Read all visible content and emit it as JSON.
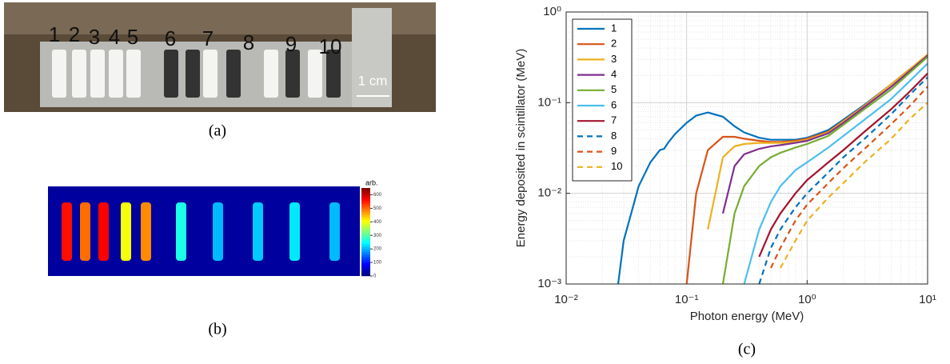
{
  "photo": {
    "labels": [
      "1",
      "2",
      "3",
      "4",
      "5",
      "6",
      "7",
      "8",
      "9",
      "10"
    ],
    "scale_label": "1 cm",
    "caption": "(a)"
  },
  "heatmap": {
    "colorbar_label": "arb.",
    "clim": [
      0,
      650
    ],
    "colorbar_ticks": [
      0,
      100,
      200,
      300,
      400,
      500,
      600
    ],
    "strip_values": [
      560,
      500,
      570,
      400,
      480,
      260,
      200,
      210,
      230,
      200
    ],
    "caption": "(b)"
  },
  "chart_data": {
    "type": "line",
    "caption": "(c)",
    "x_label": "Photon energy (MeV)",
    "y_label": "Energy deposited in scintillator (MeV)",
    "log_x": true,
    "log_y": true,
    "grid": true,
    "minor_grid": true,
    "legend": "top-left",
    "xlim": [
      0.01,
      10
    ],
    "ylim": [
      0.001,
      1
    ],
    "xticks": [
      {
        "value": 0.01,
        "label": "10⁻²"
      },
      {
        "value": 0.1,
        "label": "10⁻¹"
      },
      {
        "value": 1,
        "label": "10⁰"
      },
      {
        "value": 10,
        "label": "10¹"
      }
    ],
    "yticks": [
      {
        "value": 0.001,
        "label": "10⁻³"
      },
      {
        "value": 0.01,
        "label": "10⁻²"
      },
      {
        "value": 0.1,
        "label": "10⁻¹"
      },
      {
        "value": 1,
        "label": "10⁰"
      }
    ],
    "x": [
      0.027,
      0.03,
      0.04,
      0.05,
      0.06,
      0.065,
      0.07,
      0.08,
      0.1,
      0.12,
      0.15,
      0.2,
      0.25,
      0.3,
      0.4,
      0.5,
      0.6,
      0.8,
      1,
      1.5,
      2,
      3,
      5,
      7,
      10
    ],
    "series": [
      {
        "name": "1",
        "color": "#0072bd",
        "dashed": false,
        "values": [
          0.001,
          0.003,
          0.012,
          0.022,
          0.03,
          0.031,
          0.036,
          0.045,
          0.06,
          0.072,
          0.078,
          0.07,
          0.055,
          0.047,
          0.041,
          0.039,
          0.039,
          0.039,
          0.041,
          0.05,
          0.065,
          0.095,
          0.16,
          0.23,
          0.32
        ]
      },
      {
        "name": "2",
        "color": "#d95319",
        "dashed": false,
        "values": [
          null,
          null,
          null,
          null,
          null,
          null,
          null,
          null,
          0.001,
          0.01,
          0.03,
          0.042,
          0.042,
          0.04,
          0.038,
          0.037,
          0.037,
          0.038,
          0.04,
          0.048,
          0.063,
          0.093,
          0.16,
          0.23,
          0.33
        ]
      },
      {
        "name": "3",
        "color": "#edb120",
        "dashed": false,
        "values": [
          null,
          null,
          null,
          null,
          null,
          null,
          null,
          null,
          null,
          null,
          0.004,
          0.025,
          0.033,
          0.035,
          0.036,
          0.036,
          0.036,
          0.037,
          0.039,
          0.047,
          0.062,
          0.092,
          0.16,
          0.23,
          0.34
        ]
      },
      {
        "name": "4",
        "color": "#7e2f8e",
        "dashed": false,
        "values": [
          null,
          null,
          null,
          null,
          null,
          null,
          null,
          null,
          null,
          null,
          null,
          0.006,
          0.02,
          0.027,
          0.031,
          0.033,
          0.034,
          0.036,
          0.038,
          0.046,
          0.06,
          0.09,
          0.15,
          0.22,
          0.33
        ]
      },
      {
        "name": "5",
        "color": "#77ac30",
        "dashed": false,
        "values": [
          null,
          null,
          null,
          null,
          null,
          null,
          null,
          null,
          null,
          null,
          null,
          0.001,
          0.006,
          0.012,
          0.02,
          0.025,
          0.028,
          0.032,
          0.035,
          0.043,
          0.057,
          0.085,
          0.14,
          0.21,
          0.32
        ]
      },
      {
        "name": "6",
        "color": "#4dbeee",
        "dashed": false,
        "values": [
          null,
          null,
          null,
          null,
          null,
          null,
          null,
          null,
          null,
          null,
          null,
          null,
          null,
          0.001,
          0.004,
          0.008,
          0.012,
          0.018,
          0.022,
          0.032,
          0.043,
          0.065,
          0.11,
          0.17,
          0.27
        ]
      },
      {
        "name": "7",
        "color": "#a2142f",
        "dashed": false,
        "values": [
          null,
          null,
          null,
          null,
          null,
          null,
          null,
          null,
          null,
          null,
          null,
          null,
          null,
          null,
          0.002,
          0.004,
          0.006,
          0.01,
          0.014,
          0.022,
          0.03,
          0.048,
          0.085,
          0.13,
          0.21
        ]
      },
      {
        "name": "8",
        "color": "#0072bd",
        "dashed": true,
        "values": [
          null,
          null,
          null,
          null,
          null,
          null,
          null,
          null,
          null,
          null,
          null,
          null,
          null,
          null,
          0.001,
          0.0025,
          0.004,
          0.007,
          0.01,
          0.017,
          0.025,
          0.04,
          0.075,
          0.12,
          0.19
        ]
      },
      {
        "name": "9",
        "color": "#d95319",
        "dashed": true,
        "values": [
          null,
          null,
          null,
          null,
          null,
          null,
          null,
          null,
          null,
          null,
          null,
          null,
          null,
          null,
          null,
          0.0015,
          0.0025,
          0.005,
          0.0075,
          0.013,
          0.019,
          0.031,
          0.058,
          0.09,
          0.15
        ]
      },
      {
        "name": "10",
        "color": "#edb120",
        "dashed": true,
        "values": [
          null,
          null,
          null,
          null,
          null,
          null,
          null,
          null,
          null,
          null,
          null,
          null,
          null,
          null,
          null,
          null,
          0.0015,
          0.003,
          0.005,
          0.009,
          0.013,
          0.022,
          0.04,
          0.065,
          0.1
        ]
      }
    ]
  }
}
